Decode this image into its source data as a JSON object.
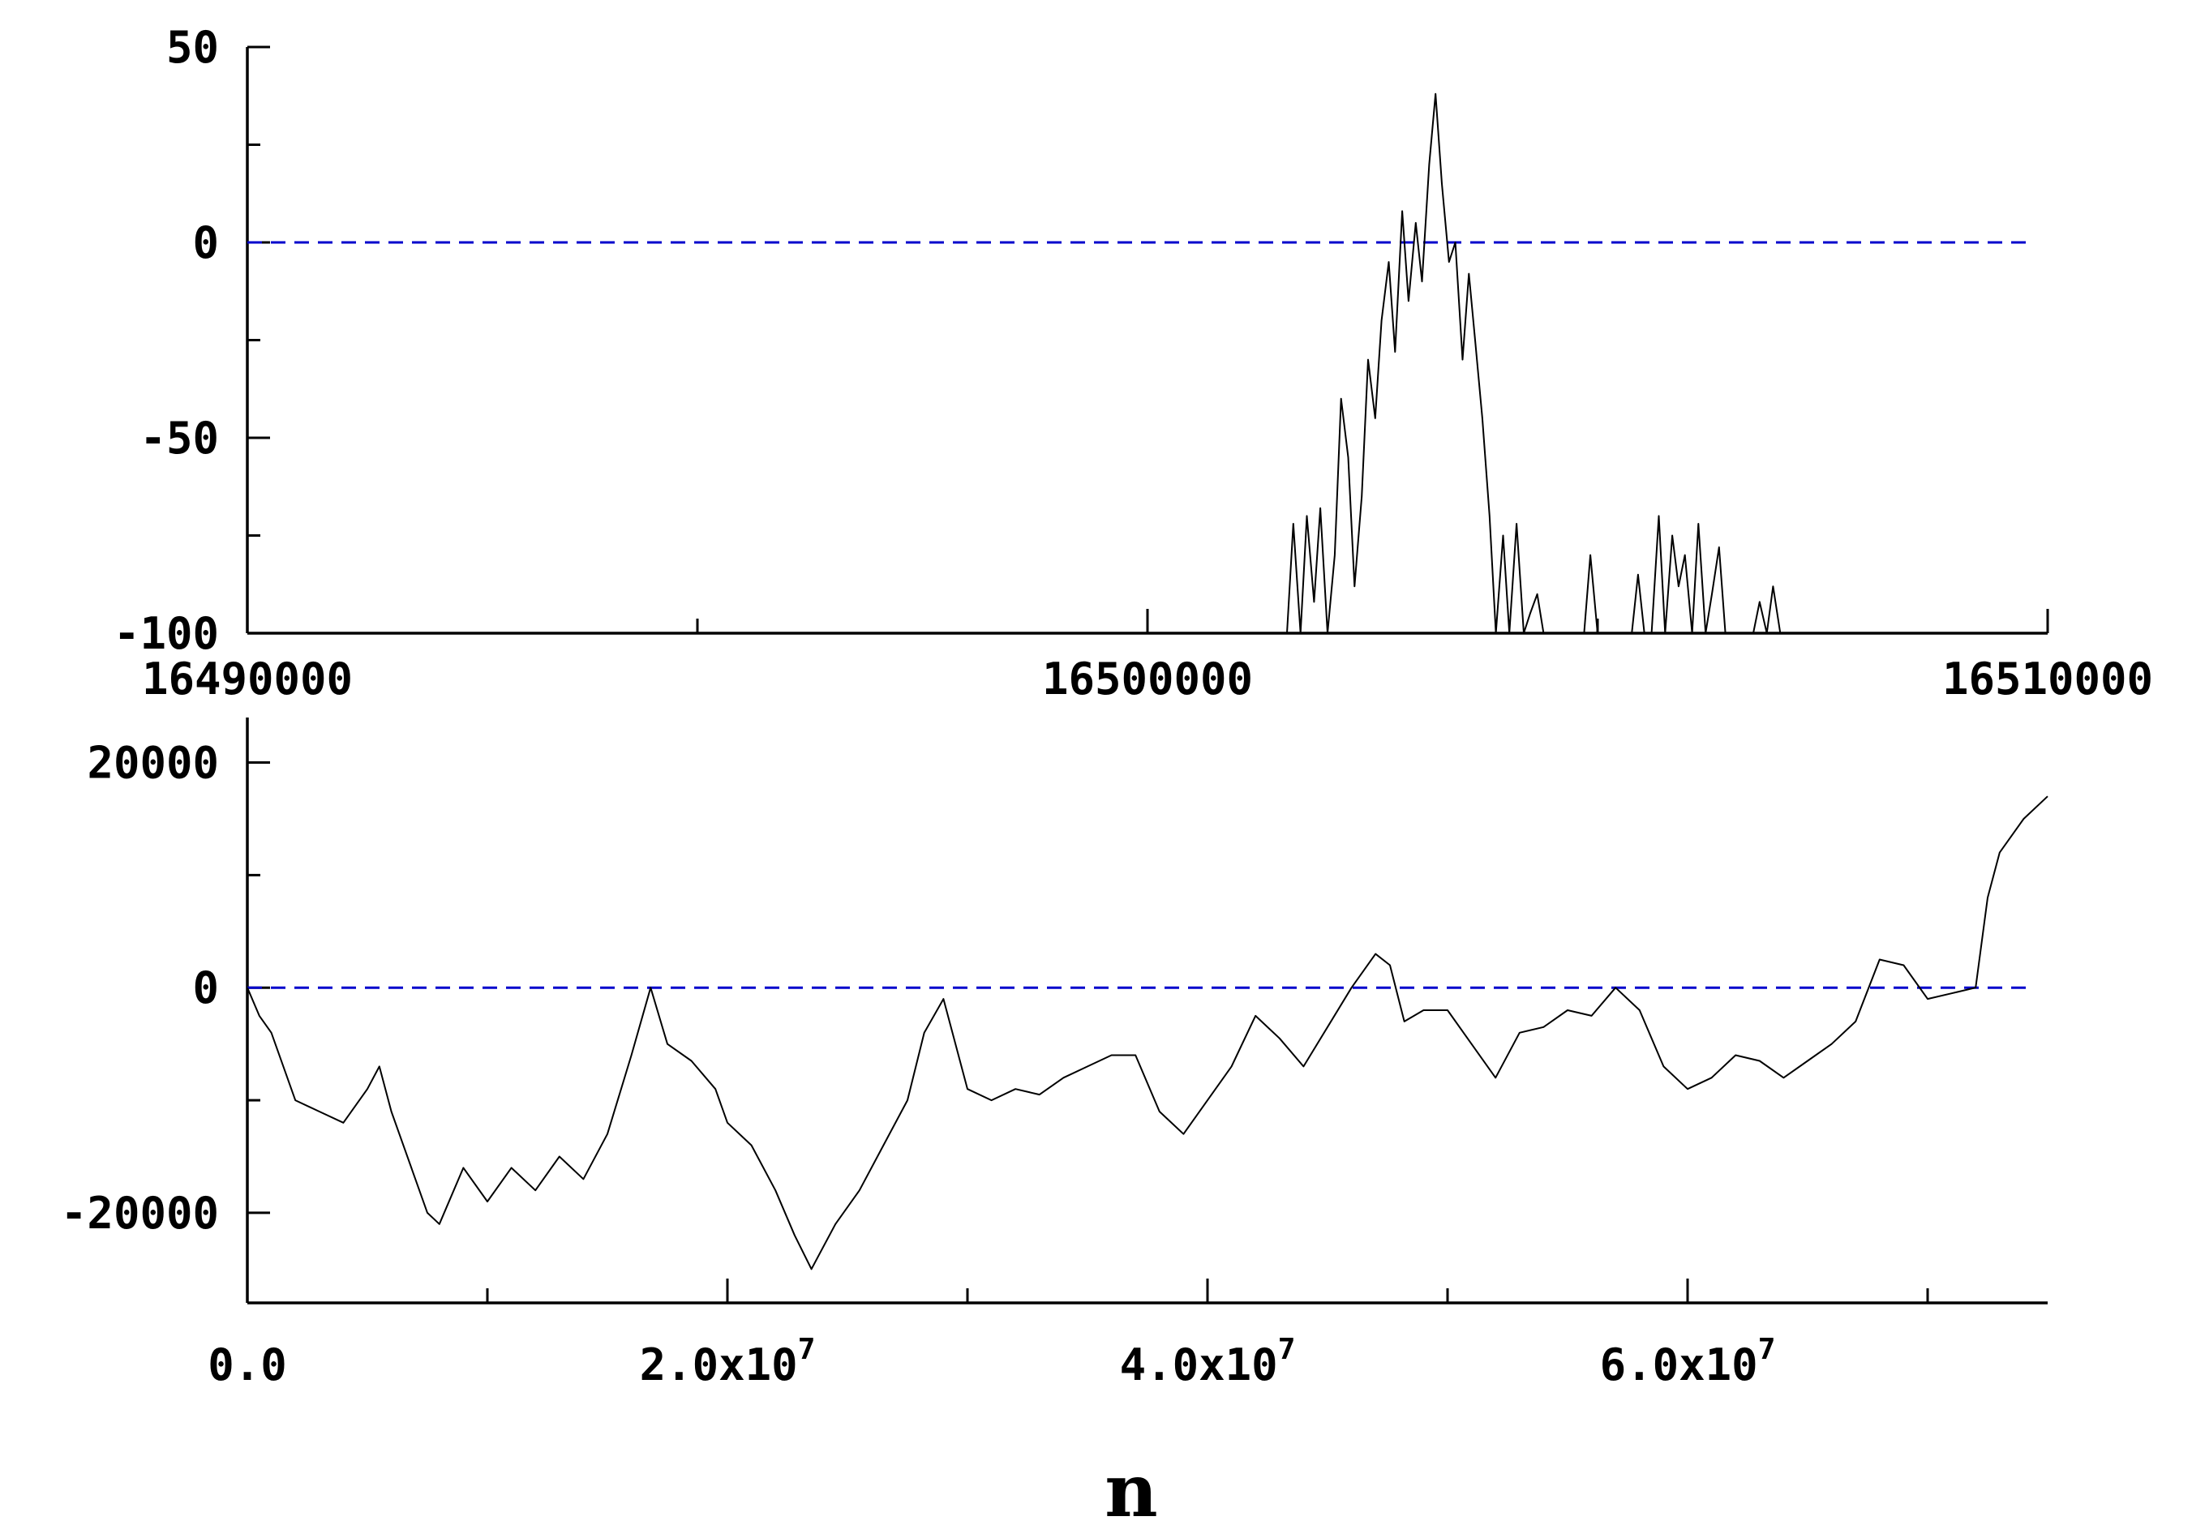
{
  "colors": {
    "series": "#000000",
    "reference_line": "#0000cc",
    "background": "#ffffff"
  },
  "chart_data": [
    {
      "type": "line",
      "title": "",
      "xlabel": "",
      "ylabel": "",
      "xlim": [
        16490000,
        16510000
      ],
      "ylim": [
        -100,
        50
      ],
      "x_tick_labels": [
        "16490000",
        "16500000",
        "16510000"
      ],
      "x_tick_values": [
        16490000,
        16500000,
        16510000
      ],
      "x_minor_tick_values": [
        16495000,
        16505000
      ],
      "y_tick_labels": [
        "50",
        "0",
        "-50",
        "-100"
      ],
      "y_tick_values": [
        50,
        0,
        -50,
        -100
      ],
      "y_minor_tick_values": [
        25,
        -25,
        -75
      ],
      "reference_lines": [
        {
          "y": 0,
          "style": "dashed",
          "color": "#0000cc"
        }
      ],
      "grid": false,
      "series": [
        {
          "x": [
            16501550,
            16501620,
            16501700,
            16501770,
            16501850,
            16501920,
            16502000,
            16502080,
            16502150,
            16502230,
            16502300,
            16502380,
            16502450,
            16502530,
            16502600,
            16502680,
            16502750,
            16502830,
            16502900,
            16502980,
            16503050,
            16503130,
            16503200,
            16503270,
            16503350,
            16503420,
            16503500,
            16503570,
            16503640,
            16503720,
            16503800,
            16503870,
            16503950,
            16504020,
            16504100,
            16504180,
            16504250,
            16504330,
            16504400,
            16504480,
            16504550,
            16504620,
            16504700,
            16504770,
            16504850,
            16504920,
            16505000,
            16505070,
            16505150,
            16505220,
            16505300,
            16505380,
            16505450,
            16505520,
            16505600,
            16505680,
            16505750,
            16505830,
            16505900,
            16505970,
            16506050,
            16506120,
            16506200,
            16506270,
            16506350,
            16506420,
            16506500,
            16506580,
            16506650,
            16506730,
            16506800,
            16506880,
            16506950,
            16507030
          ],
          "y": [
            -100,
            -72,
            -100,
            -70,
            -92,
            -68,
            -100,
            -80,
            -40,
            -55,
            -88,
            -65,
            -30,
            -45,
            -20,
            -5,
            -28,
            8,
            -15,
            5,
            -10,
            20,
            38,
            15,
            -5,
            0,
            -30,
            -8,
            -25,
            -45,
            -70,
            -100,
            -75,
            -100,
            -72,
            -100,
            -95,
            -90,
            -100,
            -100,
            -100,
            -100,
            -100,
            -100,
            -100,
            -80,
            -100,
            -100,
            -100,
            -100,
            -100,
            -100,
            -85,
            -100,
            -100,
            -70,
            -100,
            -75,
            -88,
            -80,
            -100,
            -72,
            -100,
            -90,
            -78,
            -100,
            -100,
            -100,
            -100,
            -100,
            -92,
            -100,
            -88,
            -100
          ]
        }
      ]
    },
    {
      "type": "line",
      "title": "",
      "xlabel": "n",
      "ylabel": "",
      "xlim": [
        0,
        75000000
      ],
      "ylim": [
        -28000,
        24000
      ],
      "x_tick_labels": [
        {
          "mantissa": "0.0",
          "exponent": ""
        },
        {
          "mantissa": "2.0x10",
          "exponent": "7"
        },
        {
          "mantissa": "4.0x10",
          "exponent": "7"
        },
        {
          "mantissa": "6.0x10",
          "exponent": "7"
        }
      ],
      "x_tick_values": [
        0,
        20000000,
        40000000,
        60000000
      ],
      "x_minor_tick_values": [
        10000000,
        30000000,
        50000000,
        70000000
      ],
      "y_tick_labels": [
        "20000",
        "0",
        "-20000"
      ],
      "y_tick_values": [
        20000,
        0,
        -20000
      ],
      "y_minor_tick_values": [
        10000,
        -10000
      ],
      "reference_lines": [
        {
          "y": 0,
          "style": "dashed",
          "color": "#0000cc"
        }
      ],
      "grid": false,
      "series": [
        {
          "x": [
            0,
            500000,
            1000000,
            2000000,
            3000000,
            4000000,
            5000000,
            5500000,
            6000000,
            7000000,
            7500000,
            8000000,
            9000000,
            10000000,
            11000000,
            12000000,
            13000000,
            14000000,
            15000000,
            16000000,
            16800000,
            17500000,
            18500000,
            19500000,
            20000000,
            21000000,
            22000000,
            22800000,
            23500000,
            24500000,
            25500000,
            26500000,
            27500000,
            28200000,
            29000000,
            30000000,
            31000000,
            32000000,
            33000000,
            34000000,
            35000000,
            36000000,
            37000000,
            38000000,
            39000000,
            40000000,
            41000000,
            42000000,
            43000000,
            44000000,
            45000000,
            46000000,
            47000000,
            47600000,
            48200000,
            49000000,
            50000000,
            51000000,
            52000000,
            53000000,
            54000000,
            55000000,
            56000000,
            57000000,
            58000000,
            59000000,
            60000000,
            61000000,
            62000000,
            63000000,
            64000000,
            65000000,
            66000000,
            67000000,
            68000000,
            69000000,
            70000000,
            71000000,
            72000000,
            72500000,
            73000000,
            74000000,
            75000000
          ],
          "y": [
            0,
            -2500,
            -4000,
            -10000,
            -11000,
            -12000,
            -9000,
            -7000,
            -11000,
            -17000,
            -20000,
            -21000,
            -16000,
            -19000,
            -16000,
            -18000,
            -15000,
            -17000,
            -13000,
            -6000,
            0,
            -5000,
            -6500,
            -9000,
            -12000,
            -14000,
            -18000,
            -22000,
            -25000,
            -21000,
            -18000,
            -14000,
            -10000,
            -4000,
            -1000,
            -9000,
            -10000,
            -9000,
            -9500,
            -8000,
            -7000,
            -6000,
            -6000,
            -11000,
            -13000,
            -10000,
            -7000,
            -2500,
            -4500,
            -7000,
            -3500,
            0,
            3000,
            2000,
            -3000,
            -2000,
            -2000,
            -5000,
            -8000,
            -4000,
            -3500,
            -2000,
            -2500,
            0,
            -2000,
            -7000,
            -9000,
            -8000,
            -6000,
            -6500,
            -8000,
            -6500,
            -5000,
            -3000,
            2500,
            2000,
            -1000,
            -500,
            0,
            8000,
            12000,
            15000,
            17000
          ]
        }
      ]
    }
  ]
}
